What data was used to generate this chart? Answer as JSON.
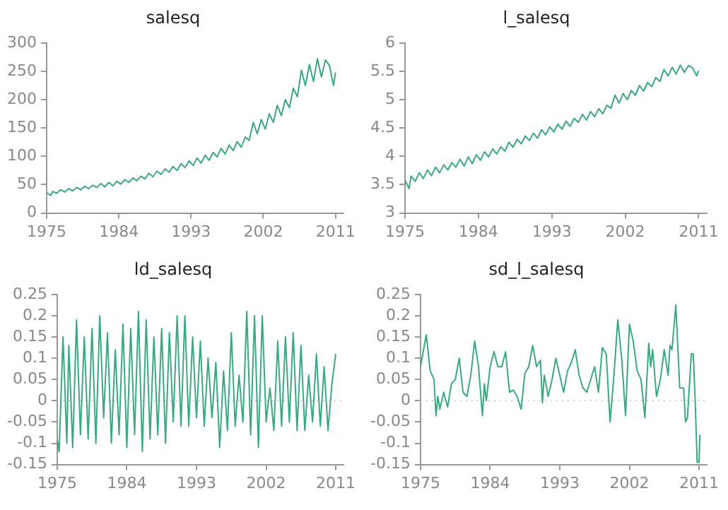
{
  "chart_data": [
    {
      "type": "line",
      "title": "salesq",
      "color": "#3aa882",
      "grid": false,
      "marker": "none",
      "line_style": "solid",
      "x": [
        1975,
        1975.5,
        1975.75,
        1976.25,
        1976.75,
        1977.25,
        1977.75,
        1978.25,
        1978.75,
        1979.25,
        1979.75,
        1980.25,
        1980.75,
        1981.25,
        1981.75,
        1982.25,
        1982.75,
        1983.25,
        1983.75,
        1984.25,
        1984.75,
        1985.25,
        1985.75,
        1986.25,
        1986.75,
        1987.25,
        1987.75,
        1988.25,
        1988.75,
        1989.25,
        1989.75,
        1990.25,
        1990.75,
        1991.25,
        1991.75,
        1992.25,
        1992.75,
        1993.25,
        1993.75,
        1994.25,
        1994.75,
        1995.25,
        1995.75,
        1996.25,
        1996.75,
        1997.25,
        1997.75,
        1998.25,
        1998.75,
        1999.25,
        1999.75,
        2000.25,
        2000.75,
        2001.25,
        2001.75,
        2002.25,
        2002.75,
        2003.25,
        2003.75,
        2004.25,
        2004.75,
        2005.25,
        2005.75,
        2006.25,
        2006.75,
        2007.25,
        2007.75,
        2008.25,
        2008.75,
        2009.25,
        2009.75,
        2010.25,
        2010.75,
        2011
      ],
      "values": [
        36,
        31,
        38,
        35,
        41,
        37,
        43,
        39,
        45,
        41,
        47,
        43,
        49,
        45,
        52,
        46,
        54,
        48,
        56,
        51,
        59,
        54,
        62,
        57,
        65,
        60,
        70,
        64,
        74,
        68,
        78,
        72,
        82,
        75,
        87,
        80,
        92,
        84,
        97,
        88,
        102,
        93,
        107,
        99,
        114,
        104,
        120,
        110,
        126,
        116,
        134,
        128,
        160,
        140,
        165,
        148,
        175,
        160,
        190,
        172,
        200,
        186,
        220,
        205,
        252,
        225,
        262,
        232,
        272,
        240,
        270,
        260,
        225,
        248
      ],
      "xlim": [
        1975,
        2012
      ],
      "xticks": [
        1975,
        1984,
        1993,
        2002,
        2011
      ],
      "ylim": [
        0,
        300
      ],
      "yticks": [
        0,
        50,
        100,
        150,
        200,
        250,
        300
      ]
    },
    {
      "type": "line",
      "title": "l_salesq",
      "color": "#3aa882",
      "grid": false,
      "marker": "none",
      "line_style": "solid",
      "x": [
        1975,
        1975.5,
        1975.75,
        1976.25,
        1976.75,
        1977.25,
        1977.75,
        1978.25,
        1978.75,
        1979.25,
        1979.75,
        1980.25,
        1980.75,
        1981.25,
        1981.75,
        1982.25,
        1982.75,
        1983.25,
        1983.75,
        1984.25,
        1984.75,
        1985.25,
        1985.75,
        1986.25,
        1986.75,
        1987.25,
        1987.75,
        1988.25,
        1988.75,
        1989.25,
        1989.75,
        1990.25,
        1990.75,
        1991.25,
        1991.75,
        1992.25,
        1992.75,
        1993.25,
        1993.75,
        1994.25,
        1994.75,
        1995.25,
        1995.75,
        1996.25,
        1996.75,
        1997.25,
        1997.75,
        1998.25,
        1998.75,
        1999.25,
        1999.75,
        2000.25,
        2000.75,
        2001.25,
        2001.75,
        2002.25,
        2002.75,
        2003.25,
        2003.75,
        2004.25,
        2004.75,
        2005.25,
        2005.75,
        2006.25,
        2006.75,
        2007.25,
        2007.75,
        2008.25,
        2008.75,
        2009.25,
        2009.75,
        2010.25,
        2010.75,
        2011
      ],
      "values": [
        3.58,
        3.43,
        3.65,
        3.56,
        3.71,
        3.61,
        3.76,
        3.66,
        3.81,
        3.71,
        3.85,
        3.76,
        3.89,
        3.81,
        3.95,
        3.83,
        3.99,
        3.87,
        4.03,
        3.93,
        4.08,
        3.99,
        4.13,
        4.04,
        4.17,
        4.09,
        4.25,
        4.16,
        4.3,
        4.22,
        4.36,
        4.28,
        4.41,
        4.32,
        4.47,
        4.38,
        4.52,
        4.43,
        4.57,
        4.48,
        4.62,
        4.53,
        4.67,
        4.6,
        4.74,
        4.64,
        4.79,
        4.7,
        4.84,
        4.75,
        4.9,
        4.85,
        5.08,
        4.94,
        5.11,
        5,
        5.16,
        5.08,
        5.25,
        5.15,
        5.3,
        5.23,
        5.39,
        5.32,
        5.53,
        5.42,
        5.57,
        5.45,
        5.61,
        5.48,
        5.6,
        5.56,
        5.42,
        5.51
      ],
      "xlim": [
        1975,
        2012
      ],
      "xticks": [
        1975,
        1984,
        1993,
        2002,
        2011
      ],
      "ylim": [
        3,
        6
      ],
      "yticks": [
        3,
        3.5,
        4,
        4.5,
        5,
        5.5,
        6
      ]
    },
    {
      "type": "line",
      "title": "ld_salesq",
      "color": "#3aa882",
      "grid": false,
      "marker": "none",
      "line_style": "solid",
      "x": [
        1975,
        1975.25,
        1975.75,
        1976.25,
        1976.5,
        1977,
        1977.5,
        1978,
        1978.5,
        1979,
        1979.5,
        1980,
        1980.5,
        1981,
        1981.5,
        1982,
        1982.5,
        1983,
        1983.5,
        1984,
        1984.5,
        1985,
        1985.5,
        1986,
        1986.5,
        1987,
        1987.5,
        1988,
        1988.5,
        1989,
        1989.5,
        1990,
        1990.5,
        1991,
        1991.5,
        1992,
        1992.5,
        1993,
        1993.5,
        1994,
        1994.5,
        1995,
        1995.5,
        1996,
        1996.5,
        1997,
        1997.5,
        1998,
        1998.5,
        1999,
        1999.5,
        2000,
        2000.5,
        2001,
        2001.5,
        2002,
        2002.5,
        2003,
        2003.5,
        2004,
        2004.5,
        2005,
        2005.5,
        2006,
        2006.5,
        2007,
        2007.5,
        2008,
        2008.5,
        2009,
        2009.5,
        2010,
        2010.5,
        2011
      ],
      "values": [
        -0.09,
        -0.12,
        0.15,
        -0.1,
        0.13,
        -0.11,
        0.19,
        -0.08,
        0.15,
        -0.09,
        0.17,
        -0.1,
        0.2,
        -0.04,
        0.16,
        -0.1,
        0.12,
        -0.08,
        0.18,
        -0.11,
        0.17,
        -0.08,
        0.21,
        -0.12,
        0.19,
        -0.09,
        0.15,
        -0.08,
        0.17,
        -0.1,
        0.16,
        -0.05,
        0.2,
        -0.06,
        0.2,
        -0.06,
        0.15,
        -0.04,
        0.14,
        -0.06,
        0.1,
        -0.04,
        0.09,
        -0.11,
        0.07,
        -0.07,
        0.16,
        -0.06,
        0.06,
        -0.05,
        0.21,
        -0.08,
        0.2,
        -0.11,
        0.2,
        -0.05,
        0.03,
        -0.07,
        0.14,
        -0.06,
        0.15,
        -0.05,
        0.16,
        -0.07,
        0.13,
        -0.07,
        0.06,
        -0.05,
        0.11,
        -0.06,
        0.08,
        -0.07,
        0.04,
        0.11
      ],
      "xlim": [
        1975,
        2012
      ],
      "xticks": [
        1975,
        1984,
        1993,
        2002,
        2011
      ],
      "ylim": [
        -0.15,
        0.25
      ],
      "yticks": [
        -0.15,
        -0.1,
        -0.05,
        0,
        0.05,
        0.1,
        0.15,
        0.2,
        0.25
      ],
      "ref_lines": [
        {
          "axis": "y",
          "value": 0,
          "color": "#cccccc",
          "line_style": "dotted"
        }
      ]
    },
    {
      "type": "line",
      "title": "sd_l_salesq",
      "color": "#3aa882",
      "grid": false,
      "marker": "none",
      "line_style": "solid",
      "x": [
        1975,
        1975.75,
        1976.25,
        1976.75,
        1977,
        1977.25,
        1977.5,
        1978,
        1978.5,
        1979,
        1979.5,
        1980,
        1980.5,
        1981,
        1981.5,
        1982,
        1982.5,
        1983,
        1983.25,
        1983.5,
        1984,
        1984.5,
        1985,
        1985.5,
        1986,
        1986.5,
        1987,
        1987.5,
        1988,
        1988.5,
        1989,
        1989.5,
        1990,
        1990.5,
        1990.75,
        1991,
        1991.5,
        1992,
        1992.5,
        1993,
        1993.5,
        1994,
        1994.5,
        1995,
        1995.5,
        1996,
        1996.5,
        1997,
        1997.5,
        1998,
        1998.5,
        1999,
        1999.5,
        2000,
        2000.5,
        2001,
        2001.5,
        2002,
        2002.5,
        2003,
        2003.5,
        2004,
        2004.5,
        2004.75,
        2005,
        2005.5,
        2006,
        2006.5,
        2007,
        2007.25,
        2007.5,
        2008,
        2008.5,
        2009,
        2009.25,
        2009.5,
        2010,
        2010.25,
        2010.5,
        2010.75,
        2011,
        2011.1
      ],
      "values": [
        0.08,
        0.155,
        0.07,
        0.05,
        -0.035,
        0.01,
        -0.02,
        0.02,
        -0.015,
        0.04,
        0.05,
        0.1,
        0.02,
        0.01,
        0.06,
        0.14,
        0.08,
        -0.035,
        0.04,
        0,
        0.08,
        0.115,
        0.08,
        0.08,
        0.115,
        0.02,
        0.025,
        0.01,
        -0.02,
        0.065,
        0.08,
        0.13,
        0.08,
        0.095,
        -0.005,
        0.06,
        0.01,
        0.05,
        0.1,
        0.06,
        0.02,
        0.07,
        0.09,
        0.12,
        0.06,
        0.03,
        0.02,
        0.05,
        0.08,
        0.02,
        0.125,
        0.11,
        -0.05,
        0.06,
        0.19,
        0.1,
        -0.035,
        0.18,
        0.14,
        0.07,
        0.05,
        -0.04,
        0.135,
        0.08,
        0.12,
        0.01,
        0.05,
        0.12,
        0.06,
        0.13,
        0.12,
        0.225,
        0.03,
        0.03,
        -0.05,
        -0.04,
        0.11,
        0.11,
        0,
        -0.145,
        -0.145,
        -0.08
      ],
      "xlim": [
        1975,
        2012
      ],
      "xticks": [
        1975,
        1984,
        1993,
        2002,
        2011
      ],
      "ylim": [
        -0.15,
        0.25
      ],
      "yticks": [
        -0.15,
        -0.1,
        -0.05,
        0,
        0.05,
        0.1,
        0.15,
        0.2,
        0.25
      ],
      "ref_lines": [
        {
          "axis": "y",
          "value": 0,
          "color": "#cccccc",
          "line_style": "dotted"
        }
      ]
    }
  ]
}
